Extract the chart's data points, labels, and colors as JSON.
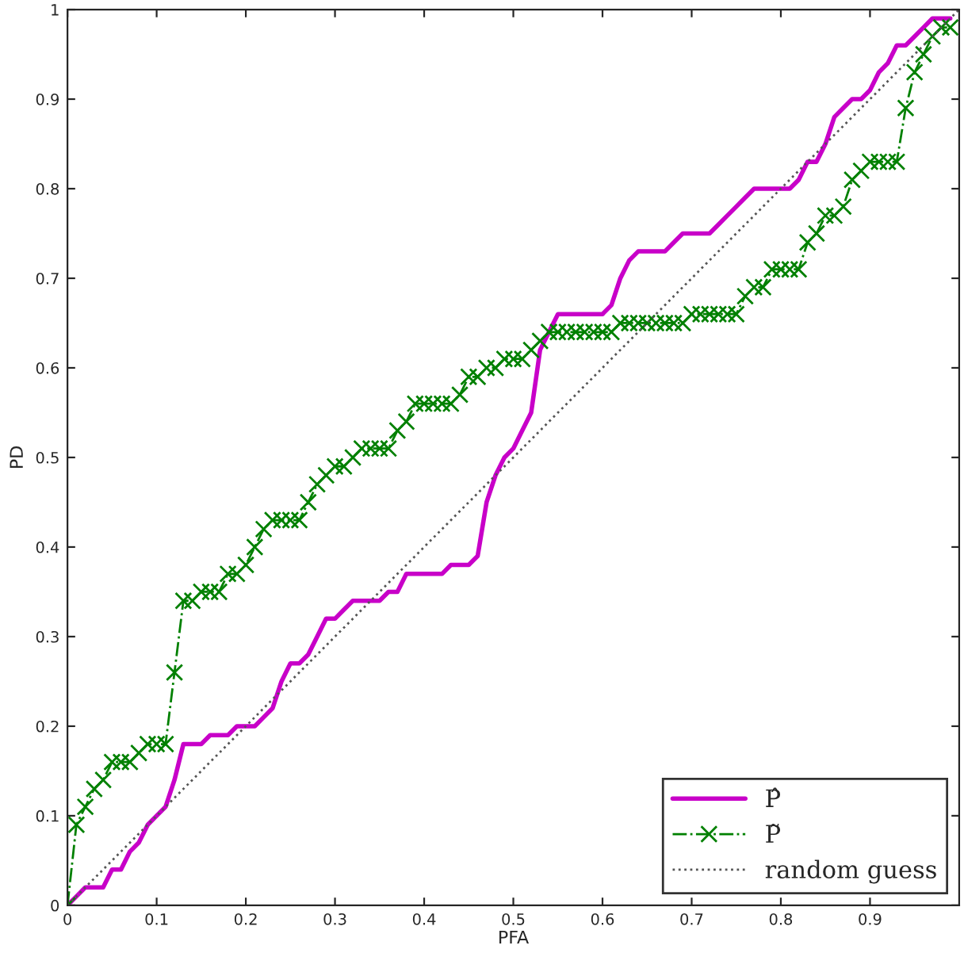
{
  "chart_data": {
    "type": "line",
    "xlabel": "PFA",
    "ylabel": "PD",
    "x": [
      0,
      0.01,
      0.02,
      0.03,
      0.04,
      0.05,
      0.06,
      0.07,
      0.08,
      0.09,
      0.1,
      0.11,
      0.12,
      0.13,
      0.14,
      0.15,
      0.16,
      0.17,
      0.18,
      0.19,
      0.2,
      0.21,
      0.22,
      0.23,
      0.24,
      0.25,
      0.26,
      0.27,
      0.28,
      0.29,
      0.3,
      0.31,
      0.32,
      0.33,
      0.34,
      0.35,
      0.36,
      0.37,
      0.38,
      0.39,
      0.4,
      0.41,
      0.42,
      0.43,
      0.44,
      0.45,
      0.46,
      0.47,
      0.48,
      0.49,
      0.5,
      0.51,
      0.52,
      0.53,
      0.54,
      0.55,
      0.56,
      0.57,
      0.58,
      0.59,
      0.6,
      0.61,
      0.62,
      0.63,
      0.64,
      0.65,
      0.66,
      0.67,
      0.68,
      0.69,
      0.7,
      0.71,
      0.72,
      0.73,
      0.74,
      0.75,
      0.76,
      0.77,
      0.78,
      0.79,
      0.8,
      0.81,
      0.82,
      0.83,
      0.84,
      0.85,
      0.86,
      0.87,
      0.88,
      0.89,
      0.9,
      0.91,
      0.92,
      0.93,
      0.94,
      0.95,
      0.96,
      0.97,
      0.98,
      0.99
    ],
    "series": [
      {
        "name": "P̂",
        "color": "#c800c8",
        "marker": "none",
        "line_style": "solid",
        "values": [
          0,
          0.01,
          0.02,
          0.02,
          0.02,
          0.04,
          0.04,
          0.06,
          0.07,
          0.09,
          0.1,
          0.11,
          0.14,
          0.18,
          0.18,
          0.18,
          0.19,
          0.19,
          0.19,
          0.2,
          0.2,
          0.2,
          0.21,
          0.22,
          0.25,
          0.27,
          0.27,
          0.28,
          0.3,
          0.32,
          0.32,
          0.33,
          0.34,
          0.34,
          0.34,
          0.34,
          0.35,
          0.35,
          0.37,
          0.37,
          0.37,
          0.37,
          0.37,
          0.38,
          0.38,
          0.38,
          0.39,
          0.45,
          0.48,
          0.5,
          0.51,
          0.53,
          0.55,
          0.62,
          0.64,
          0.66,
          0.66,
          0.66,
          0.66,
          0.66,
          0.66,
          0.67,
          0.7,
          0.72,
          0.73,
          0.73,
          0.73,
          0.73,
          0.74,
          0.75,
          0.75,
          0.75,
          0.75,
          0.76,
          0.77,
          0.78,
          0.79,
          0.8,
          0.8,
          0.8,
          0.8,
          0.8,
          0.81,
          0.83,
          0.83,
          0.85,
          0.88,
          0.89,
          0.9,
          0.9,
          0.91,
          0.93,
          0.94,
          0.96,
          0.96,
          0.97,
          0.98,
          0.99,
          0.99,
          0.99
        ]
      },
      {
        "name": "P̃",
        "color": "#008000",
        "marker": "cross",
        "line_style": "dashdot",
        "values": [
          0,
          0.09,
          0.11,
          0.13,
          0.14,
          0.16,
          0.16,
          0.16,
          0.17,
          0.18,
          0.18,
          0.18,
          0.26,
          0.34,
          0.34,
          0.35,
          0.35,
          0.35,
          0.37,
          0.37,
          0.38,
          0.4,
          0.42,
          0.43,
          0.43,
          0.43,
          0.43,
          0.45,
          0.47,
          0.48,
          0.49,
          0.49,
          0.5,
          0.51,
          0.51,
          0.51,
          0.51,
          0.53,
          0.54,
          0.56,
          0.56,
          0.56,
          0.56,
          0.56,
          0.57,
          0.59,
          0.59,
          0.6,
          0.6,
          0.61,
          0.61,
          0.61,
          0.62,
          0.63,
          0.64,
          0.64,
          0.64,
          0.64,
          0.64,
          0.64,
          0.64,
          0.64,
          0.65,
          0.65,
          0.65,
          0.65,
          0.65,
          0.65,
          0.65,
          0.65,
          0.66,
          0.66,
          0.66,
          0.66,
          0.66,
          0.66,
          0.68,
          0.69,
          0.69,
          0.71,
          0.71,
          0.71,
          0.71,
          0.74,
          0.75,
          0.77,
          0.77,
          0.78,
          0.81,
          0.82,
          0.83,
          0.83,
          0.83,
          0.83,
          0.89,
          0.93,
          0.95,
          0.97,
          0.98,
          0.98
        ]
      },
      {
        "name": "random guess",
        "color": "#555555",
        "marker": "none",
        "line_style": "dotted",
        "x": [
          0,
          1
        ],
        "values": [
          0,
          1
        ]
      }
    ],
    "xlim": [
      0,
      1
    ],
    "ylim": [
      0,
      1
    ],
    "xticks": [
      0,
      0.1,
      0.2,
      0.3,
      0.4,
      0.5,
      0.6,
      0.7,
      0.8,
      0.9
    ],
    "yticks": [
      0,
      0.1,
      0.2,
      0.3,
      0.4,
      0.5,
      0.6,
      0.7,
      0.8,
      0.9,
      1
    ],
    "grid": false,
    "legend": "bottom right"
  }
}
